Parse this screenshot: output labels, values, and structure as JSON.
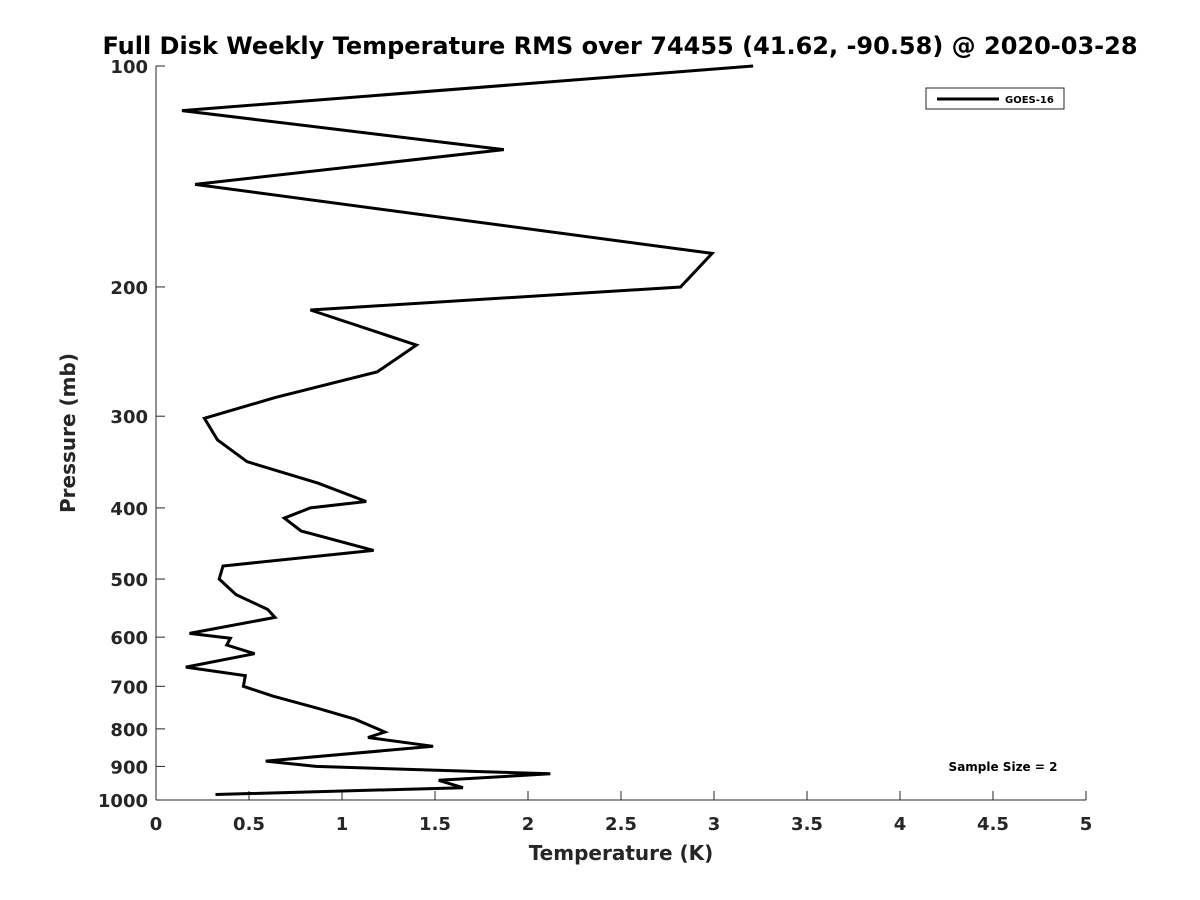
{
  "chart_data": {
    "type": "line",
    "title": "Full Disk Weekly Temperature RMS over 74455 (41.62, -90.58) @ 2020-03-28",
    "xlabel": "Temperature (K)",
    "ylabel": "Pressure (mb)",
    "xlim": [
      0,
      5
    ],
    "ylim": [
      100,
      1000
    ],
    "y_scale": "log",
    "y_reversed": true,
    "xticks": [
      0,
      0.5,
      1,
      1.5,
      2,
      2.5,
      3,
      3.5,
      4,
      4.5,
      5
    ],
    "xtick_labels": [
      "0",
      "0.5",
      "1",
      "1.5",
      "2",
      "2.5",
      "3",
      "3.5",
      "4",
      "4.5",
      "5"
    ],
    "yticks": [
      100,
      200,
      300,
      400,
      500,
      600,
      700,
      800,
      900,
      1000
    ],
    "ytick_labels": [
      "100",
      "200",
      "300",
      "400",
      "500",
      "600",
      "700",
      "800",
      "900",
      "1000"
    ],
    "grid": false,
    "legend_position": "top-right",
    "series": [
      {
        "name": "GOES-16",
        "color": "#000000",
        "points": [
          [
            3.21,
            100
          ],
          [
            0.14,
            115
          ],
          [
            1.87,
            130
          ],
          [
            0.21,
            145
          ],
          [
            2.99,
            180
          ],
          [
            2.82,
            200
          ],
          [
            0.83,
            215
          ],
          [
            1.4,
            240
          ],
          [
            1.19,
            261
          ],
          [
            0.64,
            283
          ],
          [
            0.26,
            302
          ],
          [
            0.33,
            323
          ],
          [
            0.49,
            346
          ],
          [
            0.87,
            370
          ],
          [
            1.13,
            392
          ],
          [
            0.83,
            400
          ],
          [
            0.69,
            413
          ],
          [
            0.78,
            430
          ],
          [
            1.17,
            457
          ],
          [
            0.36,
            480
          ],
          [
            0.34,
            500
          ],
          [
            0.43,
            525
          ],
          [
            0.6,
            550
          ],
          [
            0.64,
            564
          ],
          [
            0.18,
            593
          ],
          [
            0.4,
            602
          ],
          [
            0.38,
            615
          ],
          [
            0.53,
            632
          ],
          [
            0.16,
            659
          ],
          [
            0.48,
            677
          ],
          [
            0.47,
            700
          ],
          [
            0.63,
            722
          ],
          [
            0.87,
            750
          ],
          [
            1.07,
            776
          ],
          [
            1.23,
            808
          ],
          [
            1.14,
            822
          ],
          [
            1.49,
            845
          ],
          [
            0.59,
            885
          ],
          [
            0.86,
            900
          ],
          [
            2.12,
            921
          ],
          [
            1.52,
            940
          ],
          [
            1.65,
            962
          ],
          [
            0.32,
            983
          ]
        ]
      }
    ],
    "annotations": [
      "Sample Size = 2"
    ]
  }
}
